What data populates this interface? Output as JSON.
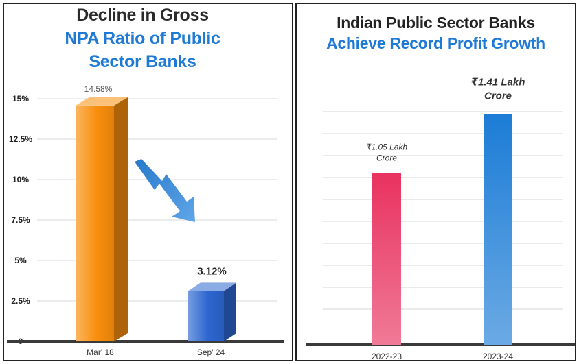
{
  "chart_data": [
    {
      "type": "bar",
      "title": "Decline in Gross NPA Ratio of Public Sector Banks",
      "title_lines": [
        "Decline in Gross",
        "NPA Ratio of Public",
        "Sector Banks"
      ],
      "categories": [
        "Mar' 18",
        "Sep' 24"
      ],
      "values": [
        14.58,
        3.12
      ],
      "value_labels": [
        "14.58%",
        "3.12%"
      ],
      "ylim": [
        0,
        15
      ],
      "ytick_values": [
        0,
        2.5,
        5,
        7.5,
        10,
        12.5,
        15
      ],
      "ytick_labels": [
        "0",
        "2.5%",
        "5%",
        "7.5%",
        "10%",
        "12.5%",
        "15%"
      ],
      "grid": true,
      "colors": [
        "#f98e0c",
        "#2c66d0"
      ],
      "arrow_color": "#2b87e0"
    },
    {
      "type": "bar",
      "title": "Indian Public Sector Banks Achieve Record Profit Growth",
      "title_lines": [
        "Indian Public Sector Banks",
        "Achieve Record Profit Growth"
      ],
      "categories": [
        "2022-23",
        "2023-24"
      ],
      "values": [
        1.05,
        1.41
      ],
      "value_labels": [
        [
          "₹1.05 Lakh",
          "Crore"
        ],
        [
          "₹1.41 Lakh",
          "Crore"
        ]
      ],
      "ylim": [
        0,
        1.6
      ],
      "grid": true,
      "colors": [
        "#e8325f",
        "#1c7cd6"
      ]
    }
  ]
}
